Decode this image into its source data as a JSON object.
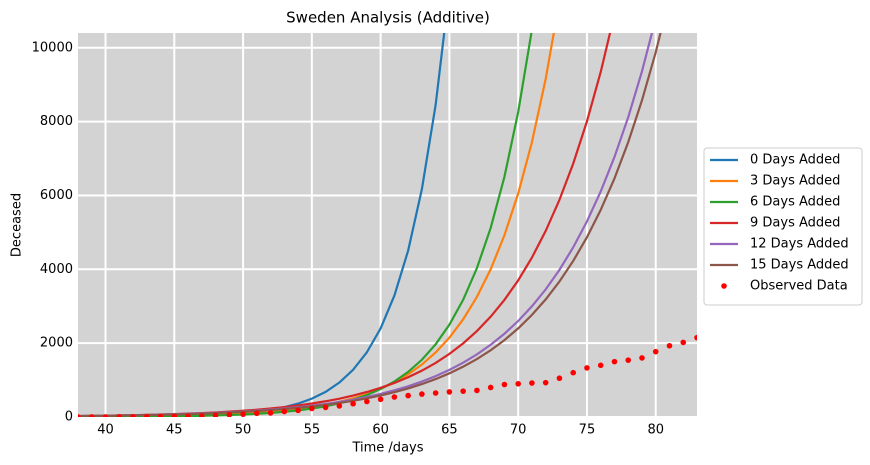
{
  "chart_data": {
    "type": "line",
    "title": "Sweden Analysis (Additive)",
    "x_label": "Time /days",
    "y_label": "Deceased",
    "x": [
      38,
      39,
      40,
      41,
      42,
      43,
      44,
      45,
      46,
      47,
      48,
      49,
      50,
      51,
      52,
      53,
      54,
      55,
      56,
      57,
      58,
      59,
      60,
      61,
      62,
      63,
      64,
      65,
      66,
      67,
      68,
      69,
      70,
      71,
      72,
      73,
      74,
      75,
      76,
      77,
      78,
      79,
      80,
      81,
      82,
      83
    ],
    "series": [
      {
        "name": "0 Days Added",
        "color": "#1f77b4",
        "values": [
          2,
          3,
          4,
          6,
          8,
          11,
          16,
          21,
          29,
          40,
          55,
          75,
          103,
          141,
          193,
          265,
          363,
          497,
          681,
          933,
          1279,
          1752,
          2400,
          3288,
          4505,
          6171,
          8455,
          11583,
          null,
          null,
          null,
          null,
          null,
          null,
          null,
          null,
          null,
          null,
          null,
          null,
          null,
          null,
          null,
          null,
          null,
          null
        ]
      },
      {
        "name": "3 Days Added",
        "color": "#ff7f0e",
        "values": [
          8,
          10,
          12,
          15,
          18,
          23,
          28,
          34,
          42,
          52,
          64,
          78,
          96,
          119,
          146,
          179,
          221,
          271,
          334,
          410,
          505,
          621,
          764,
          939,
          1155,
          1421,
          1748,
          2150,
          2645,
          3253,
          4001,
          4921,
          6053,
          7445,
          9158,
          11264,
          null,
          null,
          null,
          null,
          null,
          null,
          null,
          null,
          null,
          null
        ]
      },
      {
        "name": "6 Days Added",
        "color": "#2ca02c",
        "values": [
          4,
          5,
          6,
          8,
          10,
          13,
          16,
          21,
          27,
          34,
          43,
          55,
          69,
          88,
          112,
          142,
          180,
          229,
          291,
          370,
          469,
          596,
          757,
          961,
          1221,
          1550,
          1969,
          2500,
          3175,
          4032,
          5121,
          6503,
          8259,
          10489,
          null,
          null,
          null,
          null,
          null,
          null,
          null,
          null,
          null,
          null,
          null,
          null
        ]
      },
      {
        "name": "9 Days Added",
        "color": "#d62728",
        "values": [
          26,
          31,
          36,
          42,
          49,
          57,
          67,
          78,
          91,
          106,
          124,
          145,
          169,
          197,
          230,
          268,
          313,
          365,
          426,
          497,
          580,
          677,
          790,
          922,
          1076,
          1255,
          1465,
          1710,
          1995,
          2328,
          2717,
          3171,
          3700,
          4318,
          5039,
          5880,
          6862,
          8008,
          9345,
          10906,
          null,
          null,
          null,
          null,
          null,
          null
        ]
      },
      {
        "name": "12 Days Added",
        "color": "#9467bd",
        "values": [
          27,
          31,
          36,
          42,
          48,
          56,
          64,
          74,
          85,
          98,
          113,
          131,
          151,
          174,
          200,
          231,
          266,
          307,
          354,
          408,
          471,
          543,
          626,
          722,
          832,
          960,
          1107,
          1276,
          1471,
          1696,
          1956,
          2255,
          2600,
          2998,
          3456,
          3985,
          4595,
          5298,
          6108,
          7043,
          8120,
          9363,
          10795,
          null,
          null,
          null
        ]
      },
      {
        "name": "15 Days Added",
        "color": "#8c564b",
        "values": [
          26,
          30,
          34,
          40,
          46,
          52,
          60,
          70,
          80,
          92,
          107,
          123,
          141,
          163,
          188,
          216,
          249,
          287,
          331,
          381,
          439,
          506,
          583,
          672,
          774,
          891,
          1027,
          1183,
          1363,
          1570,
          1808,
          2083,
          2400,
          2765,
          3185,
          3669,
          4227,
          4869,
          5609,
          6462,
          7444,
          8576,
          9879,
          11381,
          null,
          null
        ]
      },
      {
        "name": "Observed Data",
        "color": "#ff0000",
        "mode": "markers",
        "values": [
          1,
          2,
          3,
          6,
          7,
          10,
          12,
          16,
          20,
          25,
          40,
          60,
          75,
          100,
          110,
          150,
          180,
          230,
          260,
          300,
          360,
          420,
          480,
          540,
          580,
          620,
          650,
          680,
          700,
          720,
          800,
          880,
          900,
          920,
          930,
          1050,
          1200,
          1330,
          1400,
          1500,
          1540,
          1600,
          1770,
          1930,
          2020,
          2150
        ]
      }
    ],
    "xlim": [
      38,
      83
    ],
    "ylim": [
      0,
      10400
    ],
    "xticks": [
      40,
      45,
      50,
      55,
      60,
      65,
      70,
      75,
      80
    ],
    "yticks": [
      0,
      2000,
      4000,
      6000,
      8000,
      10000
    ],
    "grid": true,
    "legend": "right",
    "background": "#d3d3d3"
  }
}
